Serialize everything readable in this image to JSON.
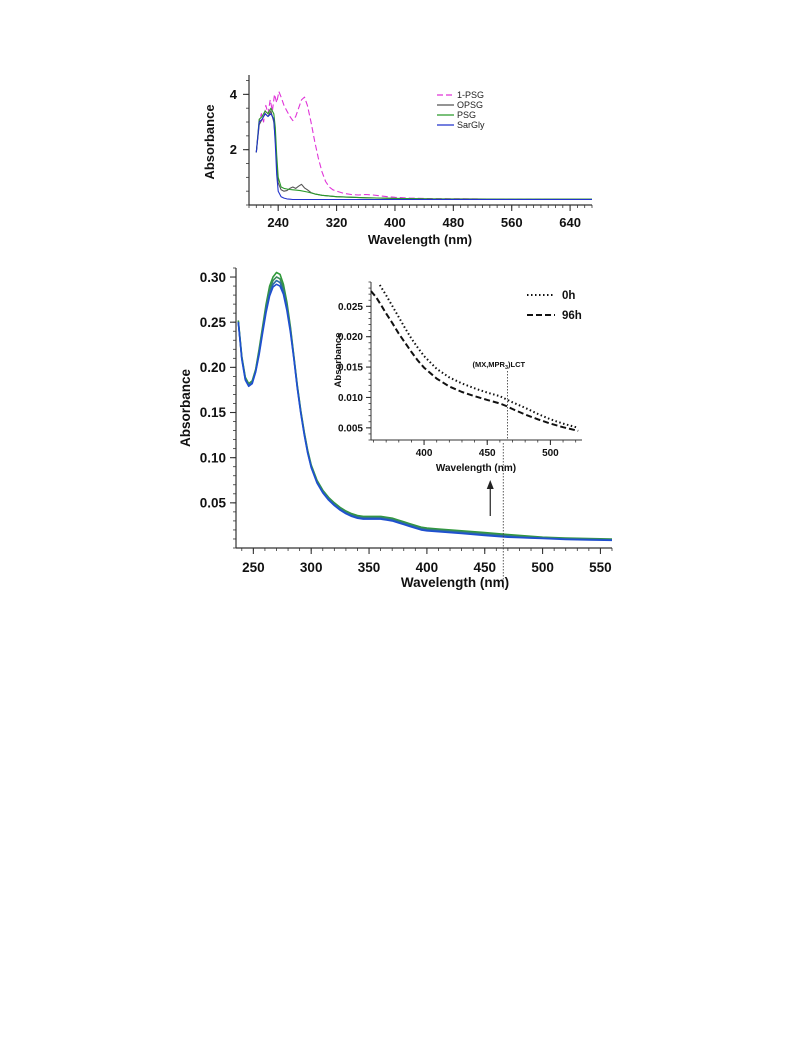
{
  "chart_data": [
    {
      "type": "line",
      "xlabel": "Wavelength (nm)",
      "ylabel": "Absorbance",
      "xlim": [
        200,
        670
      ],
      "ylim": [
        0,
        4.7
      ],
      "x_ticks": [
        "240",
        "320",
        "400",
        "480",
        "560",
        "640"
      ],
      "x_tick_values": [
        240,
        320,
        400,
        480,
        560,
        640
      ],
      "y_ticks": [
        "2",
        "4"
      ],
      "y_tick_values": [
        2,
        4
      ],
      "grid": false,
      "legend": "top-right",
      "series": [
        {
          "name": "1-PSG",
          "color": "#e034d8",
          "dash": "dashed",
          "x": [
            210,
            214,
            217,
            220,
            223,
            226,
            229,
            232,
            235,
            238,
            241,
            244,
            248,
            252,
            256,
            260,
            264,
            268,
            272,
            276,
            280,
            285,
            290,
            295,
            300,
            305,
            310,
            315,
            320,
            330,
            340,
            350,
            360,
            370,
            380,
            390,
            400,
            420,
            450,
            500,
            550,
            600,
            650,
            670
          ],
          "y": [
            1.9,
            3.0,
            3.3,
            3.0,
            3.6,
            3.3,
            3.8,
            3.4,
            4.0,
            3.7,
            4.1,
            3.9,
            3.6,
            3.4,
            3.2,
            3.05,
            3.2,
            3.5,
            3.8,
            3.9,
            3.6,
            3.0,
            2.3,
            1.7,
            1.2,
            0.85,
            0.65,
            0.55,
            0.5,
            0.42,
            0.38,
            0.36,
            0.38,
            0.36,
            0.33,
            0.3,
            0.28,
            0.25,
            0.23,
            0.22,
            0.21,
            0.21,
            0.2,
            0.2
          ]
        },
        {
          "name": "OPSG",
          "color": "#555555",
          "dash": "solid",
          "x": [
            210,
            214,
            218,
            222,
            226,
            230,
            234,
            236,
            238,
            240,
            244,
            248,
            252,
            256,
            260,
            264,
            268,
            272,
            276,
            280,
            285,
            290,
            300,
            320,
            360,
            400,
            450,
            500,
            560,
            640,
            670
          ],
          "y": [
            1.9,
            2.9,
            3.1,
            3.3,
            3.2,
            3.4,
            3.0,
            2.4,
            1.5,
            0.8,
            0.55,
            0.5,
            0.52,
            0.6,
            0.65,
            0.6,
            0.68,
            0.75,
            0.62,
            0.55,
            0.45,
            0.4,
            0.35,
            0.3,
            0.26,
            0.24,
            0.22,
            0.22,
            0.21,
            0.21,
            0.21
          ]
        },
        {
          "name": "PSG",
          "color": "#2a9a2a",
          "dash": "solid",
          "x": [
            210,
            214,
            218,
            222,
            226,
            230,
            234,
            236,
            238,
            240,
            244,
            248,
            252,
            256,
            260,
            264,
            270,
            280,
            290,
            300,
            320,
            360,
            400,
            450,
            500,
            560,
            640,
            670
          ],
          "y": [
            1.9,
            3.1,
            3.2,
            3.4,
            3.3,
            3.5,
            3.3,
            2.8,
            1.8,
            1.0,
            0.65,
            0.6,
            0.58,
            0.56,
            0.55,
            0.54,
            0.52,
            0.47,
            0.4,
            0.35,
            0.3,
            0.26,
            0.24,
            0.22,
            0.21,
            0.21,
            0.21,
            0.21
          ]
        },
        {
          "name": "SarGly",
          "color": "#2233cc",
          "dash": "solid",
          "x": [
            210,
            214,
            218,
            222,
            226,
            230,
            234,
            236,
            238,
            240,
            244,
            248,
            252,
            256,
            260,
            270,
            280,
            300,
            340,
            400,
            450,
            500,
            560,
            640,
            670
          ],
          "y": [
            1.9,
            3.0,
            3.1,
            3.3,
            3.2,
            3.3,
            3.1,
            2.2,
            1.1,
            0.5,
            0.3,
            0.25,
            0.22,
            0.21,
            0.2,
            0.2,
            0.2,
            0.2,
            0.2,
            0.2,
            0.2,
            0.2,
            0.2,
            0.2,
            0.2
          ]
        }
      ]
    },
    {
      "type": "line",
      "xlabel": "Wavelength (nm)",
      "ylabel": "Absorbance",
      "xlim": [
        235,
        560
      ],
      "ylim": [
        0,
        0.31
      ],
      "x_ticks": [
        "250",
        "300",
        "350",
        "400",
        "450",
        "500",
        "550"
      ],
      "x_tick_values": [
        250,
        300,
        350,
        400,
        450,
        500,
        550
      ],
      "y_ticks": [
        "0.05",
        "0.10",
        "0.15",
        "0.20",
        "0.25",
        "0.30"
      ],
      "y_tick_values": [
        0.05,
        0.1,
        0.15,
        0.2,
        0.25,
        0.3
      ],
      "grid": false,
      "series": [
        {
          "color": "#2f9a3a",
          "x": [
            237,
            240,
            243,
            246,
            249,
            252,
            255,
            258,
            261,
            264,
            267,
            270,
            273,
            276,
            279,
            282,
            285,
            288,
            291,
            294,
            297,
            300,
            305,
            310,
            315,
            320,
            325,
            330,
            335,
            340,
            345,
            350,
            355,
            360,
            365,
            370,
            375,
            380,
            385,
            390,
            395,
            400,
            410,
            420,
            430,
            440,
            450,
            460,
            470,
            480,
            490,
            500,
            520,
            540,
            560
          ],
          "y": [
            0.252,
            0.212,
            0.189,
            0.182,
            0.185,
            0.198,
            0.22,
            0.245,
            0.27,
            0.29,
            0.3,
            0.305,
            0.303,
            0.292,
            0.272,
            0.245,
            0.213,
            0.18,
            0.152,
            0.128,
            0.108,
            0.092,
            0.075,
            0.064,
            0.056,
            0.05,
            0.045,
            0.041,
            0.038,
            0.036,
            0.035,
            0.035,
            0.035,
            0.035,
            0.034,
            0.033,
            0.031,
            0.029,
            0.027,
            0.025,
            0.023,
            0.022,
            0.021,
            0.02,
            0.019,
            0.018,
            0.017,
            0.016,
            0.015,
            0.014,
            0.013,
            0.012,
            0.011,
            0.0105,
            0.01
          ]
        },
        {
          "color": "#3a8a5a",
          "x": [
            237,
            240,
            243,
            246,
            249,
            252,
            255,
            258,
            261,
            264,
            267,
            270,
            273,
            276,
            279,
            282,
            285,
            288,
            291,
            294,
            297,
            300,
            305,
            310,
            315,
            320,
            325,
            330,
            335,
            340,
            345,
            350,
            355,
            360,
            365,
            370,
            375,
            380,
            385,
            390,
            395,
            400,
            410,
            420,
            430,
            440,
            450,
            460,
            470,
            480,
            490,
            500,
            520,
            540,
            560
          ],
          "y": [
            0.251,
            0.211,
            0.188,
            0.181,
            0.184,
            0.197,
            0.218,
            0.243,
            0.267,
            0.286,
            0.296,
            0.3,
            0.298,
            0.288,
            0.269,
            0.243,
            0.212,
            0.179,
            0.151,
            0.127,
            0.107,
            0.091,
            0.074,
            0.063,
            0.055,
            0.049,
            0.044,
            0.04,
            0.037,
            0.035,
            0.034,
            0.034,
            0.034,
            0.034,
            0.033,
            0.032,
            0.03,
            0.028,
            0.026,
            0.024,
            0.022,
            0.021,
            0.02,
            0.019,
            0.018,
            0.017,
            0.016,
            0.015,
            0.014,
            0.013,
            0.012,
            0.0115,
            0.0105,
            0.01,
            0.0095
          ]
        },
        {
          "color": "#2a6aa8",
          "x": [
            237,
            240,
            243,
            246,
            249,
            252,
            255,
            258,
            261,
            264,
            267,
            270,
            273,
            276,
            279,
            282,
            285,
            288,
            291,
            294,
            297,
            300,
            305,
            310,
            315,
            320,
            325,
            330,
            335,
            340,
            345,
            350,
            355,
            360,
            365,
            370,
            375,
            380,
            385,
            390,
            395,
            400,
            410,
            420,
            430,
            440,
            450,
            460,
            470,
            480,
            490,
            500,
            520,
            540,
            560
          ],
          "y": [
            0.25,
            0.21,
            0.187,
            0.18,
            0.183,
            0.196,
            0.216,
            0.24,
            0.264,
            0.282,
            0.292,
            0.296,
            0.294,
            0.284,
            0.266,
            0.241,
            0.211,
            0.178,
            0.15,
            0.126,
            0.106,
            0.09,
            0.073,
            0.062,
            0.054,
            0.048,
            0.043,
            0.039,
            0.036,
            0.034,
            0.033,
            0.033,
            0.033,
            0.033,
            0.032,
            0.031,
            0.029,
            0.027,
            0.025,
            0.023,
            0.021,
            0.02,
            0.019,
            0.018,
            0.017,
            0.016,
            0.015,
            0.014,
            0.013,
            0.012,
            0.0115,
            0.011,
            0.01,
            0.0095,
            0.009
          ]
        },
        {
          "color": "#1f4fd0",
          "x": [
            237,
            240,
            243,
            246,
            249,
            252,
            255,
            258,
            261,
            264,
            267,
            270,
            273,
            276,
            279,
            282,
            285,
            288,
            291,
            294,
            297,
            300,
            305,
            310,
            315,
            320,
            325,
            330,
            335,
            340,
            345,
            350,
            355,
            360,
            365,
            370,
            375,
            380,
            385,
            390,
            395,
            400,
            410,
            420,
            430,
            440,
            450,
            460,
            470,
            480,
            490,
            500,
            520,
            540,
            560
          ],
          "y": [
            0.25,
            0.209,
            0.186,
            0.179,
            0.182,
            0.195,
            0.214,
            0.238,
            0.261,
            0.279,
            0.289,
            0.292,
            0.29,
            0.281,
            0.263,
            0.239,
            0.21,
            0.177,
            0.149,
            0.125,
            0.105,
            0.089,
            0.072,
            0.061,
            0.053,
            0.047,
            0.042,
            0.038,
            0.035,
            0.033,
            0.032,
            0.032,
            0.032,
            0.032,
            0.031,
            0.03,
            0.028,
            0.026,
            0.024,
            0.022,
            0.02,
            0.019,
            0.018,
            0.017,
            0.016,
            0.015,
            0.014,
            0.013,
            0.012,
            0.0115,
            0.011,
            0.0105,
            0.0095,
            0.009,
            0.0085
          ]
        }
      ],
      "marker": {
        "x": 466,
        "arrow": true
      }
    },
    {
      "type": "line",
      "xlabel": "Wavelength (nm)",
      "ylabel": "Absorbance",
      "xlim": [
        358,
        525
      ],
      "ylim": [
        0.003,
        0.029
      ],
      "x_ticks": [
        "400",
        "450",
        "500"
      ],
      "x_tick_values": [
        400,
        450,
        500
      ],
      "y_ticks": [
        "0.005",
        "0.010",
        "0.015",
        "0.020",
        "0.025"
      ],
      "y_tick_values": [
        0.005,
        0.01,
        0.015,
        0.02,
        0.025
      ],
      "grid": false,
      "legend": "top-right",
      "annotation": {
        "text": "(MX,MPR",
        "sub": "3",
        "suffix": ")LCT",
        "x": 466
      },
      "series": [
        {
          "name": "0h",
          "dash": "dotted",
          "color": "#111111",
          "x": [
            365,
            370,
            375,
            380,
            385,
            390,
            395,
            400,
            410,
            420,
            430,
            440,
            450,
            460,
            465,
            470,
            480,
            490,
            500,
            510,
            522
          ],
          "y": [
            0.0285,
            0.0268,
            0.025,
            0.0232,
            0.0214,
            0.0197,
            0.0182,
            0.0168,
            0.0147,
            0.0133,
            0.0123,
            0.0115,
            0.0108,
            0.0102,
            0.0097,
            0.0092,
            0.0083,
            0.0073,
            0.0064,
            0.0057,
            0.005
          ]
        },
        {
          "name": "96h",
          "dash": "dashed",
          "color": "#111111",
          "x": [
            358,
            362,
            366,
            370,
            375,
            380,
            385,
            390,
            395,
            400,
            410,
            420,
            430,
            440,
            450,
            460,
            465,
            470,
            480,
            490,
            500,
            510,
            522
          ],
          "y": [
            0.0275,
            0.0265,
            0.0252,
            0.0238,
            0.0222,
            0.0205,
            0.019,
            0.0175,
            0.0161,
            0.0149,
            0.0131,
            0.0118,
            0.0109,
            0.0102,
            0.0096,
            0.009,
            0.0086,
            0.0081,
            0.0072,
            0.0064,
            0.0057,
            0.0051,
            0.0045
          ]
        }
      ]
    }
  ]
}
